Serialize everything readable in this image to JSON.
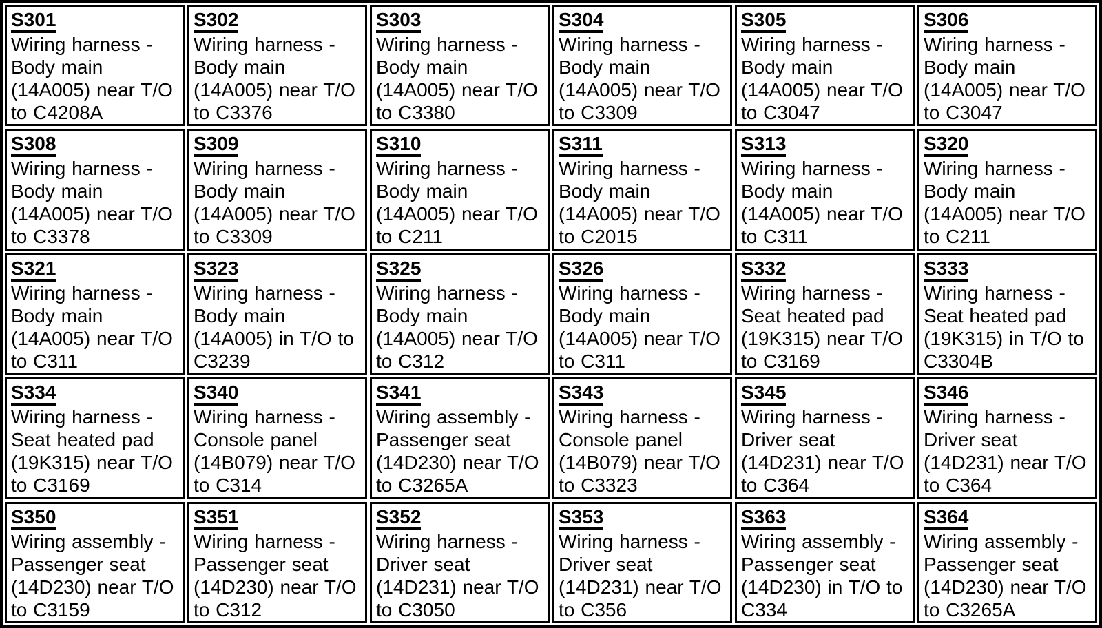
{
  "splice_table": {
    "colors": {
      "text": "#000000",
      "background": "#ffffff",
      "border": "#000000"
    },
    "cells": [
      {
        "code": "S301",
        "desc": "Wiring harness - Body main (14A005) near T/O to C4208A"
      },
      {
        "code": "S302",
        "desc": "Wiring harness - Body main (14A005) near T/O to C3376"
      },
      {
        "code": "S303",
        "desc": "Wiring harness - Body main (14A005) near T/O to C3380"
      },
      {
        "code": "S304",
        "desc": "Wiring harness - Body main (14A005) near T/O to C3309"
      },
      {
        "code": "S305",
        "desc": "Wiring harness - Body main (14A005) near T/O to C3047"
      },
      {
        "code": "S306",
        "desc": "Wiring harness - Body main (14A005) near T/O to C3047"
      },
      {
        "code": "S308",
        "desc": "Wiring harness - Body main (14A005) near T/O to C3378"
      },
      {
        "code": "S309",
        "desc": "Wiring harness - Body main (14A005) near T/O to C3309"
      },
      {
        "code": "S310",
        "desc": "Wiring harness - Body main (14A005) near T/O to C211"
      },
      {
        "code": "S311",
        "desc": "Wiring harness - Body main (14A005) near T/O to C2015"
      },
      {
        "code": "S313",
        "desc": "Wiring harness - Body main (14A005) near T/O to C311"
      },
      {
        "code": "S320",
        "desc": "Wiring harness - Body main (14A005) near T/O to C211"
      },
      {
        "code": "S321",
        "desc": "Wiring harness - Body main (14A005) near T/O to C311"
      },
      {
        "code": "S323",
        "desc": "Wiring harness - Body main (14A005) in T/O to C3239"
      },
      {
        "code": "S325",
        "desc": "Wiring harness - Body main (14A005) near T/O to C312"
      },
      {
        "code": "S326",
        "desc": "Wiring harness - Body main (14A005) near T/O to C311"
      },
      {
        "code": "S332",
        "desc": "Wiring harness - Seat heated pad (19K315) near T/O to C3169"
      },
      {
        "code": "S333",
        "desc": "Wiring harness - Seat heated pad (19K315) in T/O to C3304B"
      },
      {
        "code": "S334",
        "desc": "Wiring harness - Seat heated pad (19K315) near T/O to C3169"
      },
      {
        "code": "S340",
        "desc": "Wiring harness - Console panel (14B079) near T/O to C314"
      },
      {
        "code": "S341",
        "desc": "Wiring assembly - Passenger seat (14D230) near T/O to C3265A"
      },
      {
        "code": "S343",
        "desc": "Wiring harness - Console panel (14B079) near T/O to C3323"
      },
      {
        "code": "S345",
        "desc": "Wiring harness - Driver seat (14D231) near T/O to C364"
      },
      {
        "code": "S346",
        "desc": "Wiring harness - Driver seat (14D231) near T/O to C364"
      },
      {
        "code": "S350",
        "desc": "Wiring assembly - Passenger seat (14D230) near T/O to C3159"
      },
      {
        "code": "S351",
        "desc": "Wiring harness - Passenger seat (14D230) near T/O to C312"
      },
      {
        "code": "S352",
        "desc": "Wiring harness - Driver seat (14D231) near T/O to C3050"
      },
      {
        "code": "S353",
        "desc": "Wiring harness - Driver seat (14D231) near T/O to C356"
      },
      {
        "code": "S363",
        "desc": "Wiring assembly - Passenger seat (14D230) in T/O to C334"
      },
      {
        "code": "S364",
        "desc": "Wiring assembly - Passenger seat (14D230) near T/O to C3265A"
      }
    ]
  }
}
